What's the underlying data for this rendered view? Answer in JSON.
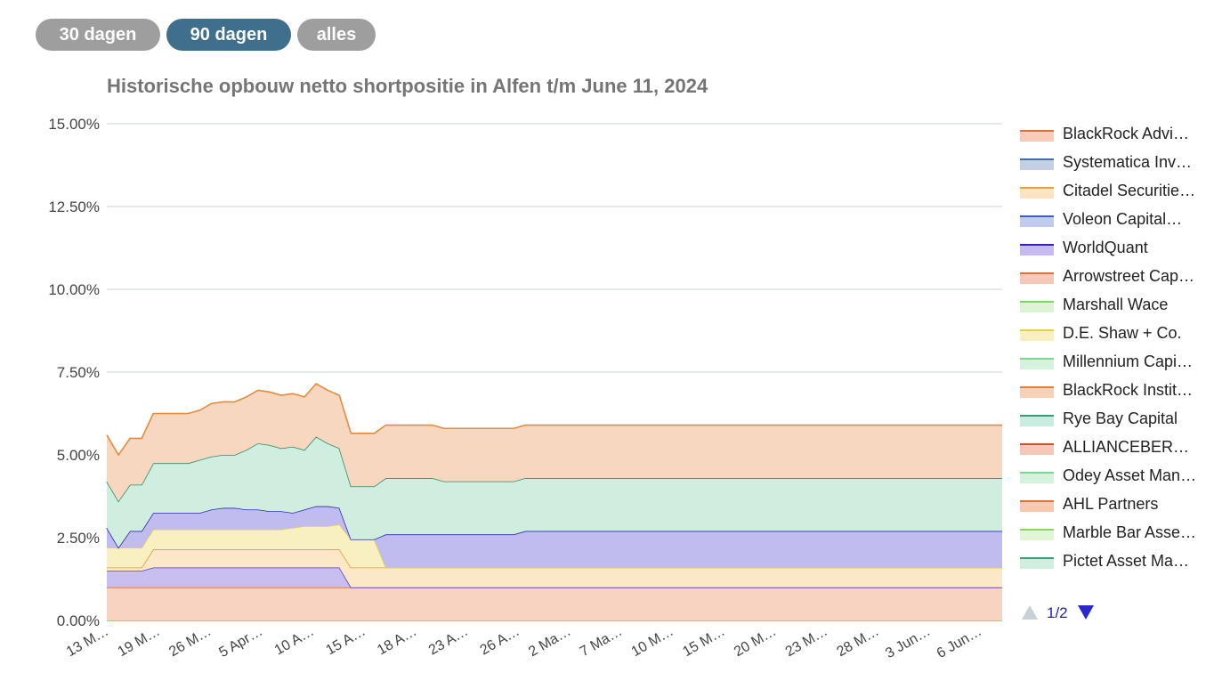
{
  "range_buttons": [
    {
      "label": "30 dagen",
      "color": "#9e9e9e"
    },
    {
      "label": "90 dagen",
      "color": "#3f6f8c"
    },
    {
      "label": "alles",
      "color": "#9e9e9e"
    }
  ],
  "legend_pager": {
    "text": "1/2"
  },
  "chart_data": {
    "type": "area",
    "stacked": true,
    "title": "Historische opbouw netto shortpositie in Alfen t/m June 11, 2024",
    "xlabel": "",
    "ylabel": "",
    "ylim": [
      0,
      15
    ],
    "y_ticks": [
      "0.00%",
      "2.50%",
      "5.00%",
      "7.50%",
      "10.00%",
      "12.50%",
      "15.00%"
    ],
    "y_tick_values": [
      0,
      2.5,
      5,
      7.5,
      10,
      12.5,
      15
    ],
    "x_labels": [
      "13 M…",
      "19 M…",
      "26 M…",
      "5 Apr…",
      "10 A…",
      "15 A…",
      "18 A…",
      "23 A…",
      "26 A…",
      "2 Ma…",
      "7 Ma…",
      "10 M…",
      "15 M…",
      "20 M…",
      "23 M…",
      "28 M…",
      "3 Jun…",
      "6 Jun…"
    ],
    "grid": true,
    "legend_position": "right",
    "series": [
      {
        "name": "Pictet Asset Ma…",
        "color": "#3a9e74",
        "fill": "#d3f0e3",
        "values": [
          0,
          0,
          0,
          0,
          0,
          0,
          0,
          0,
          0,
          0,
          0,
          0,
          0,
          0,
          0,
          0,
          0,
          0,
          0,
          0,
          0,
          0,
          0,
          0,
          0,
          0,
          0,
          0,
          0,
          0,
          0,
          0,
          0,
          0,
          0,
          0,
          0,
          0,
          0,
          0,
          0,
          0,
          0,
          0,
          0,
          0,
          0,
          0,
          0,
          0,
          0,
          0,
          0,
          0,
          0,
          0,
          0,
          0,
          0,
          0,
          0,
          0,
          0,
          0,
          0,
          0,
          0,
          0,
          0,
          0,
          0,
          0,
          0,
          0,
          0,
          0,
          0,
          0
        ]
      },
      {
        "name": "Marble Bar Asse…",
        "color": "#88d860",
        "fill": "#e6f7d8",
        "values": [
          0,
          0,
          0,
          0,
          0,
          0,
          0,
          0,
          0,
          0,
          0,
          0,
          0,
          0,
          0,
          0,
          0,
          0,
          0,
          0,
          0,
          0,
          0,
          0,
          0,
          0,
          0,
          0,
          0,
          0,
          0,
          0,
          0,
          0,
          0,
          0,
          0,
          0,
          0,
          0,
          0,
          0,
          0,
          0,
          0,
          0,
          0,
          0,
          0,
          0,
          0,
          0,
          0,
          0,
          0,
          0,
          0,
          0,
          0,
          0,
          0,
          0,
          0,
          0,
          0,
          0,
          0,
          0,
          0,
          0,
          0,
          0,
          0,
          0,
          0,
          0,
          0,
          0
        ]
      },
      {
        "name": "AHL Partners",
        "color": "#e0703a",
        "fill": "#f8d3c2",
        "values": [
          1,
          1,
          1,
          1,
          1,
          1,
          1,
          1,
          1,
          1,
          1,
          1,
          1,
          1,
          1,
          1,
          1,
          1,
          1,
          1,
          1,
          1,
          1,
          1,
          1,
          1,
          1,
          1,
          1,
          1,
          1,
          1,
          1,
          1,
          1,
          1,
          1,
          1,
          1,
          1,
          1,
          1,
          1,
          1,
          1,
          1,
          1,
          1,
          1,
          1,
          1,
          1,
          1,
          1,
          1,
          1,
          1,
          1,
          1,
          1,
          1,
          1,
          1,
          1,
          1,
          1,
          1,
          1,
          1,
          1,
          1,
          1,
          1,
          1,
          1,
          1,
          1,
          1
        ]
      },
      {
        "name": "Odey Asset Man…",
        "color": "#5a38c8",
        "fill": "#c8bff0",
        "values": [
          0.5,
          0.5,
          0.5,
          0.5,
          0.6,
          0.6,
          0.6,
          0.6,
          0.6,
          0.6,
          0.6,
          0.6,
          0.6,
          0.6,
          0.6,
          0.6,
          0.6,
          0.6,
          0.6,
          0.6,
          0.6,
          0,
          0,
          0,
          0,
          0,
          0,
          0,
          0,
          0,
          0,
          0,
          0,
          0,
          0,
          0,
          0,
          0,
          0,
          0,
          0,
          0,
          0,
          0,
          0,
          0,
          0,
          0,
          0,
          0,
          0,
          0,
          0,
          0,
          0,
          0,
          0,
          0,
          0,
          0,
          0,
          0,
          0,
          0,
          0,
          0,
          0,
          0,
          0,
          0,
          0,
          0,
          0,
          0,
          0,
          0,
          0,
          0
        ]
      },
      {
        "name": "ALLIANCEBER…",
        "color": "#e89a3a",
        "fill": "#fbe8c8",
        "values": [
          0.1,
          0.1,
          0.1,
          0.1,
          0.55,
          0.55,
          0.55,
          0.55,
          0.55,
          0.55,
          0.55,
          0.55,
          0.55,
          0.55,
          0.55,
          0.55,
          0.55,
          0.55,
          0.55,
          0.55,
          0.55,
          0.6,
          0.6,
          0.6,
          0.6,
          0.6,
          0.6,
          0.6,
          0.6,
          0.6,
          0.6,
          0.6,
          0.6,
          0.6,
          0.6,
          0.6,
          0.6,
          0.6,
          0.6,
          0.6,
          0.6,
          0.6,
          0.6,
          0.6,
          0.6,
          0.6,
          0.6,
          0.6,
          0.6,
          0.6,
          0.6,
          0.6,
          0.6,
          0.6,
          0.6,
          0.6,
          0.6,
          0.6,
          0.6,
          0.6,
          0.6,
          0.6,
          0.6,
          0.6,
          0.6,
          0.6,
          0.6,
          0.6,
          0.6,
          0.6,
          0.6,
          0.6,
          0.6,
          0.6,
          0.6,
          0.6,
          0.6,
          0.6
        ]
      },
      {
        "name": "Rye Bay Capital",
        "color": "#e8d040",
        "fill": "#f8f0c0",
        "values": [
          0.6,
          0.6,
          0.6,
          0.6,
          0.6,
          0.6,
          0.6,
          0.6,
          0.6,
          0.6,
          0.6,
          0.6,
          0.6,
          0.6,
          0.6,
          0.6,
          0.65,
          0.7,
          0.7,
          0.7,
          0.75,
          0.85,
          0.85,
          0.85,
          0,
          0,
          0,
          0,
          0,
          0,
          0,
          0,
          0,
          0,
          0,
          0,
          0,
          0,
          0,
          0,
          0,
          0,
          0,
          0,
          0,
          0,
          0,
          0,
          0,
          0,
          0,
          0,
          0,
          0,
          0,
          0,
          0,
          0,
          0,
          0,
          0,
          0,
          0,
          0,
          0,
          0,
          0,
          0,
          0,
          0,
          0,
          0,
          0,
          0,
          0,
          0,
          0,
          0
        ]
      },
      {
        "name": "BlackRock Instit…",
        "color": "#2a2ab8",
        "fill": "#c0bcf0",
        "values": [
          0.6,
          0,
          0.5,
          0.5,
          0.5,
          0.5,
          0.5,
          0.5,
          0.5,
          0.6,
          0.65,
          0.65,
          0.6,
          0.6,
          0.55,
          0.55,
          0.45,
          0.5,
          0.6,
          0.6,
          0.5,
          0,
          0,
          0,
          1.0,
          1.0,
          1.0,
          1.0,
          1.0,
          1.0,
          1.0,
          1.0,
          1.0,
          1.0,
          1.0,
          1.0,
          1.1,
          1.1,
          1.1,
          1.1,
          1.1,
          1.1,
          1.1,
          1.1,
          1.1,
          1.1,
          1.1,
          1.1,
          1.1,
          1.1,
          1.1,
          1.1,
          1.1,
          1.1,
          1.1,
          1.1,
          1.1,
          1.1,
          1.1,
          1.1,
          1.1,
          1.1,
          1.1,
          1.1,
          1.1,
          1.1,
          1.1,
          1.1,
          1.1,
          1.1,
          1.1,
          1.1,
          1.1,
          1.1,
          1.1,
          1.1,
          1.1,
          1.1
        ]
      },
      {
        "name": "Millennium Capi…",
        "color": "#2a8f6a",
        "fill": "#cfeee0",
        "values": [
          1.4,
          1.4,
          1.4,
          1.4,
          1.5,
          1.5,
          1.5,
          1.5,
          1.6,
          1.6,
          1.6,
          1.6,
          1.8,
          2.0,
          2.0,
          1.9,
          2.0,
          1.8,
          2.1,
          1.9,
          1.8,
          1.6,
          1.6,
          1.6,
          1.7,
          1.7,
          1.7,
          1.7,
          1.7,
          1.6,
          1.6,
          1.6,
          1.6,
          1.6,
          1.6,
          1.6,
          1.6,
          1.6,
          1.6,
          1.6,
          1.6,
          1.6,
          1.6,
          1.6,
          1.6,
          1.6,
          1.6,
          1.6,
          1.6,
          1.6,
          1.6,
          1.6,
          1.6,
          1.6,
          1.6,
          1.6,
          1.6,
          1.6,
          1.6,
          1.6,
          1.6,
          1.6,
          1.6,
          1.6,
          1.6,
          1.6,
          1.6,
          1.6,
          1.6,
          1.6,
          1.6,
          1.6,
          1.6,
          1.6,
          1.6,
          1.6,
          1.6,
          1.6
        ]
      },
      {
        "name": "BlackRock Advi…",
        "color": "#e88a3a",
        "fill": "#f8d7c0",
        "values": [
          1.4,
          1.4,
          1.4,
          1.4,
          1.5,
          1.5,
          1.5,
          1.5,
          1.5,
          1.6,
          1.6,
          1.6,
          1.6,
          1.6,
          1.6,
          1.6,
          1.6,
          1.6,
          1.6,
          1.6,
          1.6,
          1.6,
          1.6,
          1.6,
          1.6,
          1.6,
          1.6,
          1.6,
          1.6,
          1.6,
          1.6,
          1.6,
          1.6,
          1.6,
          1.6,
          1.6,
          1.6,
          1.6,
          1.6,
          1.6,
          1.6,
          1.6,
          1.6,
          1.6,
          1.6,
          1.6,
          1.6,
          1.6,
          1.6,
          1.6,
          1.6,
          1.6,
          1.6,
          1.6,
          1.6,
          1.6,
          1.6,
          1.6,
          1.6,
          1.6,
          1.6,
          1.6,
          1.6,
          1.6,
          1.6,
          1.6,
          1.6,
          1.6,
          1.6,
          1.6,
          1.6,
          1.6,
          1.6,
          1.6,
          1.6,
          1.6,
          1.6,
          1.6
        ]
      }
    ]
  },
  "legend": [
    {
      "label": "BlackRock Advi…",
      "stroke": "#e0703a",
      "fill": "#f8cbb8"
    },
    {
      "label": "Systematica Inv…",
      "stroke": "#3f6fa8",
      "fill": "#c4cfe6"
    },
    {
      "label": "Citadel Securitie…",
      "stroke": "#e8a040",
      "fill": "#fbe3c0"
    },
    {
      "label": "Voleon Capital…",
      "stroke": "#3a5fc0",
      "fill": "#c0cbee"
    },
    {
      "label": "WorldQuant",
      "stroke": "#3a1fc8",
      "fill": "#c9b9f2"
    },
    {
      "label": "Arrowstreet Cap…",
      "stroke": "#e0703a",
      "fill": "#f6c8b8"
    },
    {
      "label": "Marshall Wace",
      "stroke": "#7cd860",
      "fill": "#dcf4d4"
    },
    {
      "label": "D.E. Shaw + Co.",
      "stroke": "#e8d040",
      "fill": "#f8f0c0"
    },
    {
      "label": "Millennium Capi…",
      "stroke": "#7cd890",
      "fill": "#d4f2dc"
    },
    {
      "label": "BlackRock Instit…",
      "stroke": "#e0803a",
      "fill": "#f8d0b8"
    },
    {
      "label": "Rye Bay Capital",
      "stroke": "#3a9a7a",
      "fill": "#c9ece0"
    },
    {
      "label": "ALLIANCEBER…",
      "stroke": "#d0502a",
      "fill": "#f6c8b8"
    },
    {
      "label": "Odey Asset Man…",
      "stroke": "#7cd890",
      "fill": "#d4f2dc"
    },
    {
      "label": "AHL Partners",
      "stroke": "#e0703a",
      "fill": "#f8c8b0"
    },
    {
      "label": "Marble Bar Asse…",
      "stroke": "#88d860",
      "fill": "#e0f6d4"
    },
    {
      "label": "Pictet Asset Ma…",
      "stroke": "#3a9e74",
      "fill": "#cfeee0"
    }
  ]
}
